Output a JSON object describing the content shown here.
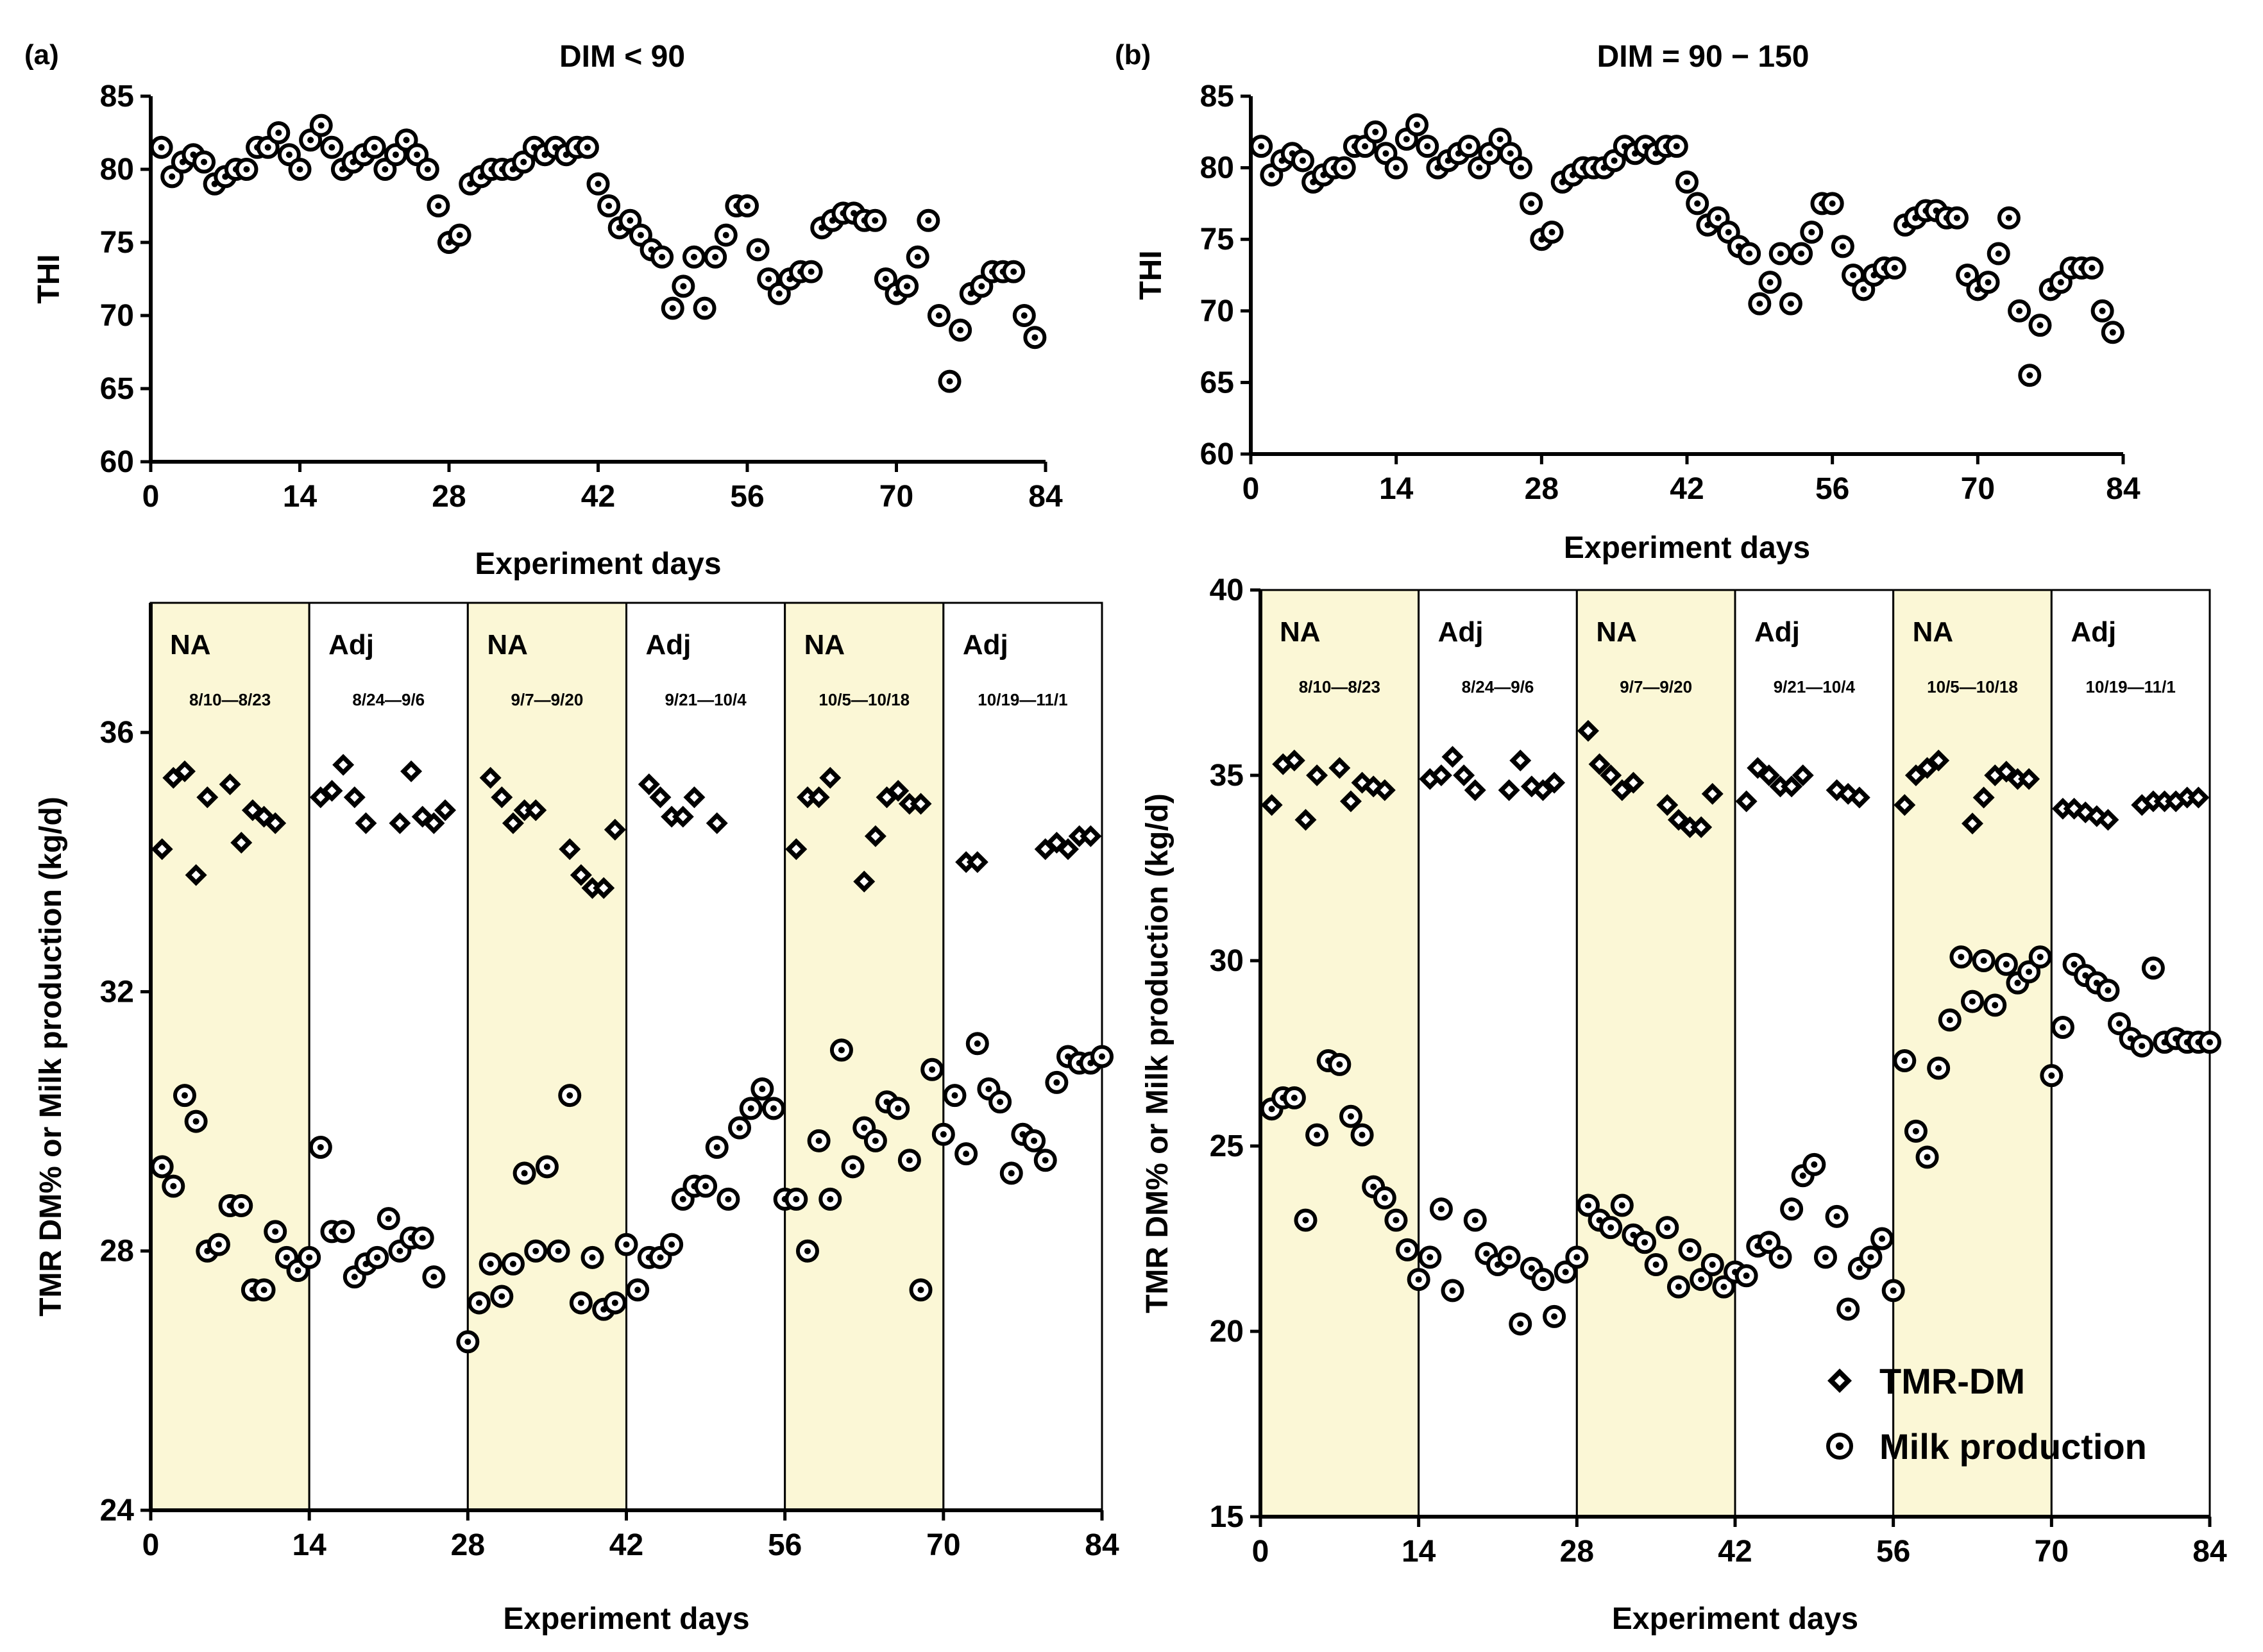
{
  "figure": {
    "colors": {
      "na_fill": "#fbf7d6",
      "adj_fill": "#ffffff",
      "marker": "#000000"
    },
    "panels": {
      "a": {
        "letter": "(a)",
        "title": "DIM < 90"
      },
      "b": {
        "letter": "(b)",
        "title": "DIM = 90 − 150"
      }
    },
    "legend": {
      "tmr": "TMR-DM",
      "milk": "Milk production"
    }
  },
  "chart_data": [
    {
      "id": "thi_a",
      "type": "scatter",
      "title": "DIM < 90",
      "xlabel": "Experiment days",
      "ylabel": "THI",
      "xlim": [
        0,
        84
      ],
      "ylim": [
        60,
        85
      ],
      "xticks": [
        0,
        14,
        28,
        42,
        56,
        70,
        84
      ],
      "yticks": [
        60,
        65,
        70,
        75,
        80,
        85
      ],
      "series": [
        {
          "name": "THI",
          "x": [
            1,
            2,
            3,
            4,
            5,
            6,
            7,
            8,
            9,
            10,
            11,
            12,
            13,
            14,
            15,
            16,
            17,
            18,
            19,
            20,
            21,
            22,
            23,
            24,
            25,
            26,
            27,
            28,
            29,
            30,
            31,
            32,
            33,
            34,
            35,
            36,
            37,
            38,
            39,
            40,
            41,
            42,
            43,
            44,
            45,
            46,
            47,
            48,
            49,
            50,
            51,
            52,
            53,
            54,
            55,
            56,
            57,
            58,
            59,
            60,
            61,
            62,
            63,
            64,
            65,
            66,
            67,
            68,
            69,
            70,
            71,
            72,
            73,
            74,
            75,
            76,
            77,
            78,
            79,
            80,
            81,
            82,
            83
          ],
          "y": [
            81.5,
            79.5,
            80.5,
            81,
            80.5,
            79,
            79.5,
            80,
            80,
            81.5,
            81.5,
            82.5,
            81,
            80,
            82,
            83,
            81.5,
            80,
            80.5,
            81,
            81.5,
            80,
            81,
            82,
            81,
            80,
            77.5,
            75,
            75.5,
            79,
            79.5,
            80,
            80,
            80,
            80.5,
            81.5,
            81,
            81.5,
            81,
            81.5,
            81.5,
            79,
            77.5,
            76,
            76.5,
            75.5,
            74.5,
            74,
            70.5,
            72,
            74,
            70.5,
            74,
            75.5,
            77.5,
            77.5,
            74.5,
            72.5,
            71.5,
            72.5,
            73,
            73,
            76,
            76.5,
            77,
            77,
            76.5,
            76.5,
            72.5,
            71.5,
            72,
            74,
            76.5,
            70,
            65.5,
            69,
            71.5,
            72,
            73,
            73,
            73,
            70,
            68.5
          ]
        }
      ]
    },
    {
      "id": "thi_b",
      "type": "scatter",
      "title": "DIM = 90 − 150",
      "xlabel": "Experiment days",
      "ylabel": "THI",
      "xlim": [
        0,
        84
      ],
      "ylim": [
        60,
        85
      ],
      "xticks": [
        0,
        14,
        28,
        42,
        56,
        70,
        84
      ],
      "yticks": [
        60,
        65,
        70,
        75,
        80,
        85
      ],
      "series": [
        {
          "name": "THI",
          "x": [
            1,
            2,
            3,
            4,
            5,
            6,
            7,
            8,
            9,
            10,
            11,
            12,
            13,
            14,
            15,
            16,
            17,
            18,
            19,
            20,
            21,
            22,
            23,
            24,
            25,
            26,
            27,
            28,
            29,
            30,
            31,
            32,
            33,
            34,
            35,
            36,
            37,
            38,
            39,
            40,
            41,
            42,
            43,
            44,
            45,
            46,
            47,
            48,
            49,
            50,
            51,
            52,
            53,
            54,
            55,
            56,
            57,
            58,
            59,
            60,
            61,
            62,
            63,
            64,
            65,
            66,
            67,
            68,
            69,
            70,
            71,
            72,
            73,
            74,
            75,
            76,
            77,
            78,
            79,
            80,
            81,
            82,
            83
          ],
          "y": [
            81.5,
            79.5,
            80.5,
            81,
            80.5,
            79,
            79.5,
            80,
            80,
            81.5,
            81.5,
            82.5,
            81,
            80,
            82,
            83,
            81.5,
            80,
            80.5,
            81,
            81.5,
            80,
            81,
            82,
            81,
            80,
            77.5,
            75,
            75.5,
            79,
            79.5,
            80,
            80,
            80,
            80.5,
            81.5,
            81,
            81.5,
            81,
            81.5,
            81.5,
            79,
            77.5,
            76,
            76.5,
            75.5,
            74.5,
            74,
            70.5,
            72,
            74,
            70.5,
            74,
            75.5,
            77.5,
            77.5,
            74.5,
            72.5,
            71.5,
            72.5,
            73,
            73,
            76,
            76.5,
            77,
            77,
            76.5,
            76.5,
            72.5,
            71.5,
            72,
            74,
            76.5,
            70,
            65.5,
            69,
            71.5,
            72,
            73,
            73,
            73,
            70,
            68.5
          ]
        }
      ]
    },
    {
      "id": "tmr_a",
      "type": "scatter",
      "xlabel": "Experiment days",
      "ylabel": "TMR DM% or Milk production (kg/d)",
      "xlim": [
        0,
        84
      ],
      "ylim": [
        24,
        38
      ],
      "xticks": [
        0,
        14,
        28,
        42,
        56,
        70,
        84
      ],
      "yticks": [
        24,
        28,
        32,
        36
      ],
      "phases": [
        {
          "label": "NA",
          "dates": "8/10—8/23",
          "start": 0,
          "end": 14
        },
        {
          "label": "Adj",
          "dates": "8/24—9/6",
          "start": 14,
          "end": 28
        },
        {
          "label": "NA",
          "dates": "9/7—9/20",
          "start": 28,
          "end": 42
        },
        {
          "label": "Adj",
          "dates": "9/21—10/4",
          "start": 42,
          "end": 56
        },
        {
          "label": "NA",
          "dates": "10/5—10/18",
          "start": 56,
          "end": 70
        },
        {
          "label": "Adj",
          "dates": "10/19—11/1",
          "start": 70,
          "end": 84
        }
      ],
      "series": [
        {
          "name": "TMR-DM",
          "x": [
            1,
            2,
            3,
            4,
            5,
            7,
            8,
            9,
            10,
            11,
            15,
            16,
            17,
            18,
            19,
            22,
            23,
            24,
            25,
            26,
            30,
            31,
            32,
            33,
            34,
            37,
            38,
            39,
            40,
            41,
            44,
            45,
            46,
            47,
            48,
            50,
            57,
            58,
            59,
            60,
            63,
            64,
            65,
            66,
            67,
            68,
            72,
            73,
            79,
            80,
            81,
            82,
            83
          ],
          "y": [
            34.2,
            35.3,
            35.4,
            33.8,
            35.0,
            35.2,
            34.3,
            34.8,
            34.7,
            34.6,
            35.0,
            35.1,
            35.5,
            35.0,
            34.6,
            34.6,
            35.4,
            34.7,
            34.6,
            34.8,
            35.3,
            35.0,
            34.6,
            34.8,
            34.8,
            34.2,
            33.8,
            33.6,
            33.6,
            34.5,
            35.2,
            35.0,
            34.7,
            34.7,
            35.0,
            34.6,
            34.2,
            35.0,
            35.0,
            35.3,
            33.7,
            34.4,
            35.0,
            35.1,
            34.9,
            34.9,
            34.0,
            34.0,
            34.2,
            34.3,
            34.2,
            34.4,
            34.4
          ]
        },
        {
          "name": "Milk production",
          "x": [
            1,
            2,
            3,
            4,
            5,
            6,
            7,
            8,
            9,
            10,
            11,
            12,
            13,
            14,
            15,
            16,
            17,
            18,
            19,
            20,
            21,
            22,
            23,
            24,
            25,
            28,
            29,
            30,
            31,
            32,
            33,
            34,
            35,
            36,
            37,
            38,
            39,
            40,
            41,
            42,
            43,
            44,
            45,
            46,
            47,
            48,
            49,
            50,
            51,
            52,
            53,
            54,
            55,
            56,
            57,
            58,
            59,
            60,
            61,
            62,
            63,
            64,
            65,
            66,
            67,
            68,
            69,
            70,
            71,
            72,
            73,
            74,
            75,
            76,
            77,
            78,
            79,
            80,
            81,
            82,
            83,
            84
          ],
          "y": [
            29.3,
            29.0,
            30.4,
            30.0,
            28.0,
            28.1,
            28.7,
            28.7,
            27.4,
            27.4,
            28.3,
            27.9,
            27.7,
            27.9,
            29.6,
            28.3,
            28.3,
            27.6,
            27.8,
            27.9,
            28.5,
            28.0,
            28.2,
            28.2,
            27.6,
            26.6,
            27.2,
            27.8,
            27.3,
            27.8,
            29.2,
            28.0,
            29.3,
            28.0,
            30.4,
            27.2,
            27.9,
            27.1,
            27.2,
            28.1,
            27.4,
            27.9,
            27.9,
            28.1,
            28.8,
            29.0,
            29.0,
            29.6,
            28.8,
            29.9,
            30.2,
            30.5,
            30.2,
            28.8,
            28.8,
            28.0,
            29.7,
            28.8,
            31.1,
            29.3,
            29.9,
            29.7,
            30.3,
            30.2,
            29.4,
            27.4,
            30.8,
            29.8,
            30.4,
            29.5,
            31.2,
            30.5,
            30.3,
            29.2,
            29.8,
            29.7,
            29.4,
            30.6,
            31.0,
            30.9,
            30.9,
            31.0
          ]
        }
      ]
    },
    {
      "id": "tmr_b",
      "type": "scatter",
      "xlabel": "Experiment days",
      "ylabel": "TMR DM% or Milk production (kg/d)",
      "xlim": [
        0,
        84
      ],
      "ylim": [
        15,
        40
      ],
      "xticks": [
        0,
        14,
        28,
        42,
        56,
        70,
        84
      ],
      "yticks": [
        15,
        20,
        25,
        30,
        35,
        40
      ],
      "phases": [
        {
          "label": "NA",
          "dates": "8/10—8/23",
          "start": 0,
          "end": 14
        },
        {
          "label": "Adj",
          "dates": "8/24—9/6",
          "start": 14,
          "end": 28
        },
        {
          "label": "NA",
          "dates": "9/7—9/20",
          "start": 28,
          "end": 42
        },
        {
          "label": "Adj",
          "dates": "9/21—10/4",
          "start": 42,
          "end": 56
        },
        {
          "label": "NA",
          "dates": "10/5—10/18",
          "start": 56,
          "end": 70
        },
        {
          "label": "Adj",
          "dates": "10/19—11/1",
          "start": 70,
          "end": 84
        }
      ],
      "series": [
        {
          "name": "TMR-DM",
          "x": [
            1,
            2,
            3,
            4,
            5,
            7,
            8,
            9,
            10,
            11,
            15,
            16,
            17,
            18,
            19,
            22,
            23,
            24,
            25,
            26,
            29,
            30,
            31,
            32,
            33,
            36,
            37,
            38,
            39,
            40,
            43,
            44,
            45,
            46,
            47,
            48,
            51,
            52,
            53,
            57,
            58,
            59,
            60,
            63,
            64,
            65,
            66,
            67,
            68,
            71,
            72,
            73,
            74,
            75,
            78,
            79,
            80,
            81,
            82,
            83
          ],
          "y": [
            34.2,
            35.3,
            35.4,
            33.8,
            35.0,
            35.2,
            34.3,
            34.8,
            34.7,
            34.6,
            34.9,
            35.0,
            35.5,
            35.0,
            34.6,
            34.6,
            35.4,
            34.7,
            34.6,
            34.8,
            36.2,
            35.3,
            35.0,
            34.6,
            34.8,
            34.2,
            33.8,
            33.6,
            33.6,
            34.5,
            34.3,
            35.2,
            35.0,
            34.7,
            34.7,
            35.0,
            34.6,
            34.5,
            34.4,
            34.2,
            35.0,
            35.2,
            35.4,
            33.7,
            34.4,
            35.0,
            35.1,
            34.9,
            34.9,
            34.1,
            34.1,
            34.0,
            33.9,
            33.8,
            34.2,
            34.3,
            34.3,
            34.3,
            34.4,
            34.4
          ]
        },
        {
          "name": "Milk production",
          "x": [
            1,
            2,
            3,
            4,
            5,
            6,
            7,
            8,
            9,
            10,
            11,
            12,
            13,
            14,
            15,
            16,
            17,
            19,
            20,
            21,
            22,
            23,
            24,
            25,
            26,
            27,
            28,
            29,
            30,
            31,
            32,
            33,
            34,
            35,
            36,
            37,
            38,
            39,
            40,
            41,
            42,
            43,
            44,
            45,
            46,
            47,
            48,
            49,
            50,
            51,
            52,
            53,
            54,
            55,
            56,
            57,
            58,
            59,
            60,
            61,
            62,
            63,
            64,
            65,
            66,
            67,
            68,
            69,
            70,
            71,
            72,
            73,
            74,
            75,
            76,
            77,
            78,
            79,
            80,
            81,
            82,
            83,
            84
          ],
          "y": [
            26.0,
            26.3,
            26.3,
            23.0,
            25.3,
            27.3,
            27.2,
            25.8,
            25.3,
            23.9,
            23.6,
            23.0,
            22.2,
            21.4,
            22.0,
            23.3,
            21.1,
            23.0,
            22.1,
            21.8,
            22.0,
            20.2,
            21.7,
            21.4,
            20.4,
            21.6,
            22.0,
            23.4,
            23.0,
            22.8,
            23.4,
            22.6,
            22.4,
            21.8,
            22.8,
            21.2,
            22.2,
            21.4,
            21.8,
            21.2,
            21.6,
            21.5,
            22.3,
            22.4,
            22.0,
            23.3,
            24.2,
            24.5,
            22.0,
            23.1,
            20.6,
            21.7,
            22.0,
            22.5,
            21.1,
            27.3,
            25.4,
            24.7,
            27.1,
            28.4,
            30.1,
            28.9,
            30.0,
            28.8,
            29.9,
            29.4,
            29.7,
            30.1,
            26.9,
            28.2,
            29.9,
            29.6,
            29.4,
            29.2,
            28.3,
            27.9,
            27.7,
            29.8,
            27.8,
            27.9,
            27.8,
            27.8,
            27.8
          ]
        }
      ]
    }
  ]
}
